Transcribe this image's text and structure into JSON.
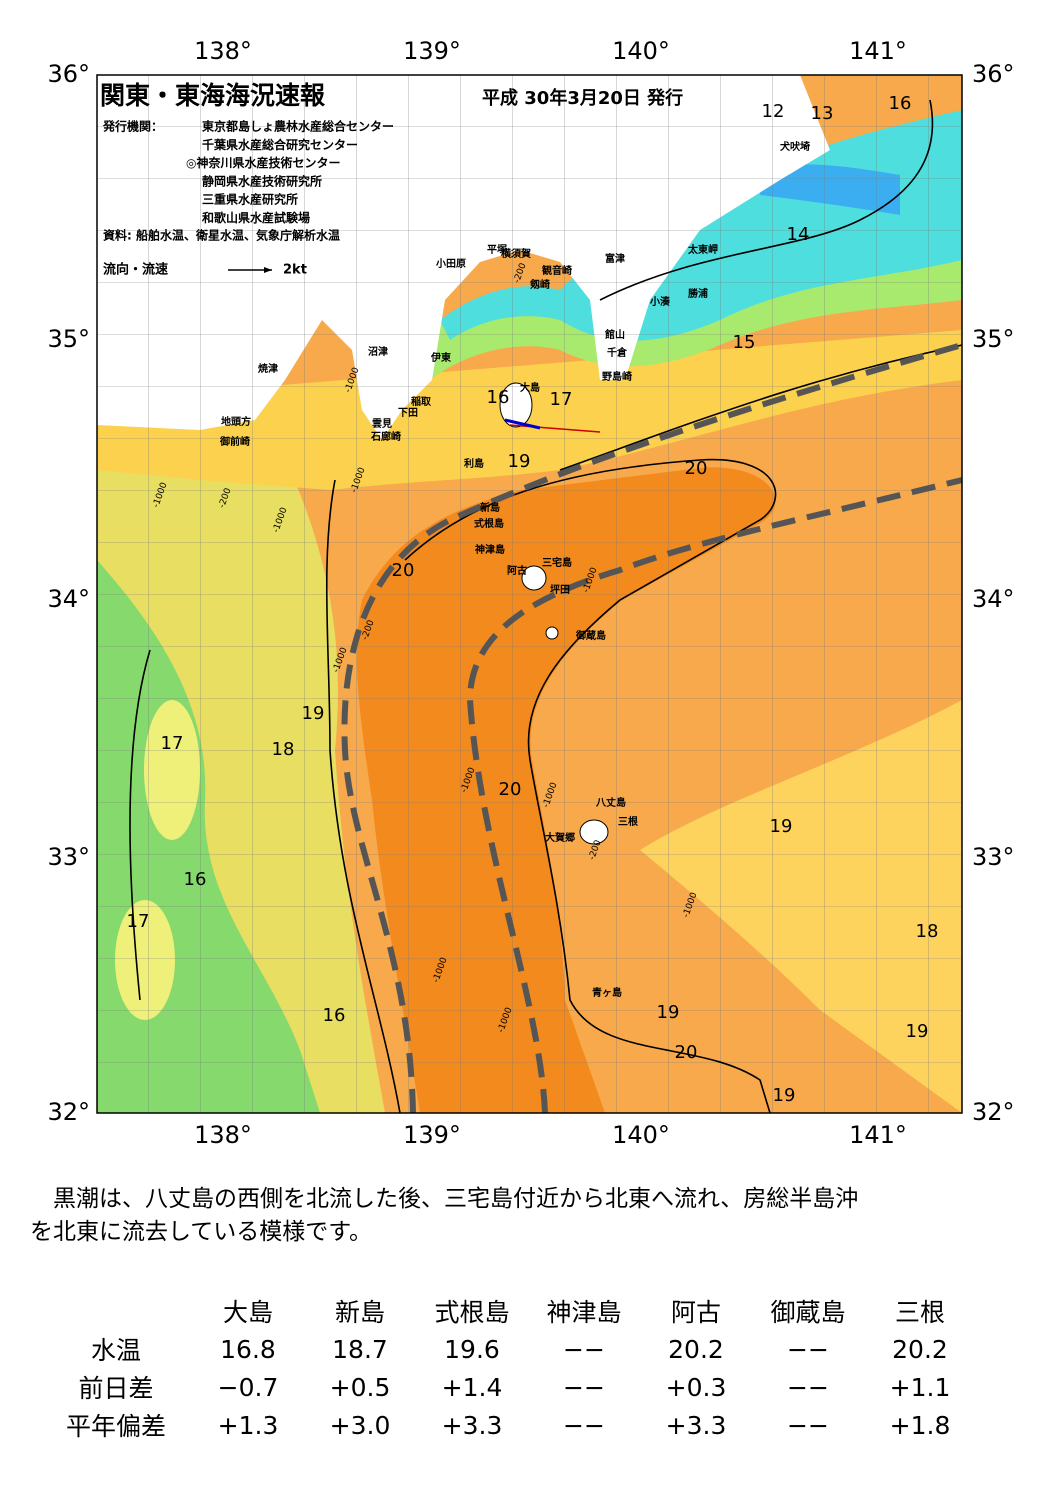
{
  "header": {
    "title": "関東・東海海況速報",
    "date": "平成 30年3月20日 発行",
    "publisher_label": "発行機関：",
    "publishers": [
      "東京都島しょ農林水産総合センター",
      "千葉県水産総合研究センター",
      "◎神奈川県水産技術センター",
      "静岡県水産技術研究所",
      "三重県水産研究所",
      "和歌山県水産試験場"
    ],
    "sources": "資料: 船舶水温、衛星水温、気象庁解析水温",
    "legend_label": "流向・流速",
    "legend_speed": "2kt"
  },
  "axes": {
    "top": [
      "138°",
      "139°",
      "140°",
      "141°"
    ],
    "bottom": [
      "138°",
      "139°",
      "140°",
      "141°"
    ],
    "left": [
      "36°",
      "35°",
      "34°",
      "33°",
      "32°"
    ],
    "right": [
      "36°",
      "35°",
      "34°",
      "33°",
      "32°"
    ]
  },
  "places": [
    "犬吠埼",
    "太東岬",
    "富津",
    "横須賀",
    "平塚",
    "観音崎",
    "小田原",
    "剱崎",
    "勝浦",
    "小湊",
    "館山",
    "千倉",
    "野島崎",
    "沼津",
    "伊東",
    "焼津",
    "大島",
    "稲取",
    "下田",
    "雲見",
    "石廊崎",
    "地頭方",
    "御前崎",
    "利島",
    "新島",
    "式根島",
    "神津島",
    "三宅島",
    "阿古",
    "坪田",
    "御蔵島",
    "八丈島",
    "三根",
    "大賀郷",
    "青ヶ島"
  ],
  "isotherm_labels": [
    "12",
    "13",
    "16",
    "14",
    "15",
    "16",
    "17",
    "19",
    "20",
    "20",
    "19",
    "17",
    "18",
    "20",
    "19",
    "16",
    "17",
    "18",
    "16",
    "19",
    "19",
    "20",
    "19"
  ],
  "depth_labels": [
    "-200",
    "-1000",
    "-1000",
    "-200",
    "-1000",
    "-1000",
    "-200",
    "-1000",
    "-1000",
    "-1000",
    "-1000",
    "-1000",
    "-200",
    "-1000",
    "-1000"
  ],
  "summary": [
    "　黒潮は、八丈島の西側を北流した後、三宅島付近から北東へ流れ、房総半島沖",
    "を北東に流去している模様です。"
  ],
  "table": {
    "columns": [
      "大島",
      "新島",
      "式根島",
      "神津島",
      "阿古",
      "御蔵島",
      "三根"
    ],
    "rows": [
      {
        "label": "水温",
        "cells": [
          "16.8",
          "18.7",
          "19.6",
          "−−",
          "20.2",
          "−−",
          "20.2"
        ]
      },
      {
        "label": "前日差",
        "cells": [
          "−0.7",
          "+0.5",
          "+1.4",
          "−−",
          "+0.3",
          "−−",
          "+1.1"
        ]
      },
      {
        "label": "平年偏差",
        "cells": [
          "+1.3",
          "+3.0",
          "+3.3",
          "−−",
          "+3.3",
          "−−",
          "+1.8"
        ]
      }
    ]
  }
}
